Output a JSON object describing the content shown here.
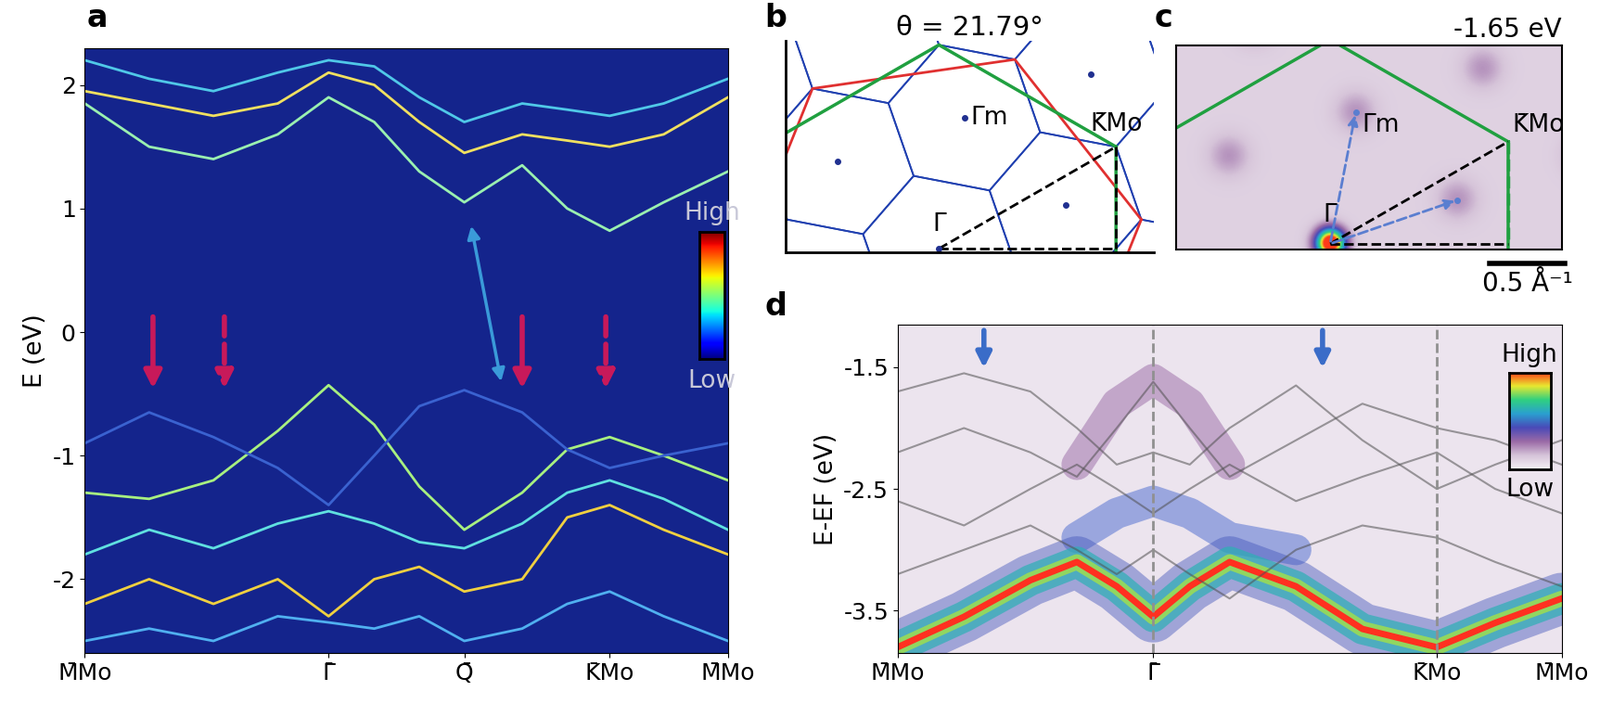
{
  "panel_labels": [
    "a",
    "b",
    "c",
    "d"
  ],
  "chart_data": [
    {
      "type": "line",
      "ylabel": "E (eV)",
      "x": [
        0,
        0.1,
        0.2,
        0.3,
        0.379,
        0.45,
        0.52,
        0.59,
        0.68,
        0.75,
        0.816,
        0.9,
        1.0
      ],
      "series": [
        {
          "color": "#9af0b0",
          "line_style": "solid",
          "values": [
            1.85,
            1.5,
            1.4,
            1.6,
            1.9,
            1.7,
            1.3,
            1.05,
            1.35,
            1.0,
            0.82,
            1.05,
            1.3
          ]
        },
        {
          "color": "#f0e060",
          "line_style": "solid",
          "values": [
            1.95,
            1.85,
            1.75,
            1.85,
            2.1,
            2.0,
            1.7,
            1.45,
            1.6,
            1.55,
            1.5,
            1.6,
            1.9
          ]
        },
        {
          "color": "#50c8e8",
          "line_style": "solid",
          "values": [
            2.2,
            2.05,
            1.95,
            2.1,
            2.2,
            2.15,
            1.9,
            1.7,
            1.85,
            1.8,
            1.75,
            1.85,
            2.05
          ]
        },
        {
          "color": "#a8f080",
          "line_style": "solid",
          "values": [
            -1.3,
            -1.35,
            -1.2,
            -0.8,
            -0.43,
            -0.75,
            -1.25,
            -1.6,
            -1.3,
            -0.95,
            -0.85,
            -1.0,
            -1.2
          ]
        },
        {
          "color": "#3a62d0",
          "line_style": "solid",
          "values": [
            -0.9,
            -0.65,
            -0.85,
            -1.1,
            -1.4,
            -1.0,
            -0.6,
            -0.47,
            -0.65,
            -0.95,
            -1.1,
            -1.0,
            -0.9
          ]
        },
        {
          "color": "#60e0e0",
          "line_style": "solid",
          "values": [
            -1.8,
            -1.6,
            -1.75,
            -1.55,
            -1.45,
            -1.55,
            -1.7,
            -1.75,
            -1.55,
            -1.3,
            -1.2,
            -1.35,
            -1.6
          ]
        },
        {
          "color": "#f0d040",
          "line_style": "solid",
          "values": [
            -2.2,
            -2.0,
            -2.2,
            -2.0,
            -2.3,
            -2.0,
            -1.9,
            -2.1,
            -2.0,
            -1.5,
            -1.4,
            -1.6,
            -1.8
          ]
        },
        {
          "color": "#50b0f0",
          "line_style": "solid",
          "values": [
            -2.5,
            -2.4,
            -2.5,
            -2.3,
            -2.35,
            -2.4,
            -2.3,
            -2.5,
            -2.4,
            -2.2,
            -2.1,
            -2.3,
            -2.5
          ]
        }
      ],
      "xlim": [
        0,
        1.0
      ],
      "ylim": [
        -2.6,
        2.3
      ],
      "yticks": [
        -2,
        -1,
        0,
        1,
        2
      ],
      "xticks": [
        {
          "value": 0,
          "label": "M̄Mo"
        },
        {
          "value": 0.379,
          "label": "Γ̄"
        },
        {
          "value": 0.59,
          "label": "Q̄"
        },
        {
          "value": 0.816,
          "label": "K̄Mo"
        },
        {
          "value": 1.0,
          "label": "M̄Mo"
        }
      ],
      "colorbar_labels": [
        "High",
        "Low"
      ]
    },
    {
      "type": "line",
      "ylabel": "E-EF (eV)",
      "x": [
        0,
        0.1,
        0.2,
        0.27,
        0.33,
        0.385,
        0.44,
        0.5,
        0.6,
        0.7,
        0.812,
        0.9,
        1.0
      ],
      "series": [
        {
          "color": "#9a6aa6",
          "line_style": "thick",
          "values": [
            null,
            null,
            null,
            -2.3,
            -1.8,
            -1.6,
            -1.8,
            -2.3,
            null,
            null,
            null,
            null,
            null
          ]
        },
        {
          "color": "#4a6ad0",
          "line_style": "thick",
          "values": [
            null,
            null,
            null,
            -2.9,
            -2.7,
            -2.6,
            -2.7,
            -2.9,
            -3.0,
            null,
            null,
            null,
            null
          ]
        },
        {
          "color": "#ff3020",
          "line_style": "broad",
          "values": [
            -3.8,
            -3.55,
            -3.25,
            -3.1,
            -3.3,
            -3.55,
            -3.3,
            -3.1,
            -3.3,
            -3.65,
            -3.8,
            -3.6,
            -3.4
          ]
        },
        {
          "color": "#505050",
          "line_style": "solid",
          "values": [
            -2.2,
            -2.0,
            -2.2,
            -2.4,
            -2.0,
            -1.62,
            -2.0,
            -2.4,
            -2.1,
            -1.8,
            -2.0,
            -2.1,
            -2.3
          ]
        },
        {
          "color": "#505050",
          "line_style": "solid",
          "values": [
            -1.7,
            -1.55,
            -1.7,
            -2.0,
            -2.3,
            -2.2,
            -2.3,
            -2.0,
            -1.65,
            -2.1,
            -2.5,
            -2.3,
            -2.1
          ]
        },
        {
          "color": "#505050",
          "line_style": "solid",
          "values": [
            -2.6,
            -2.8,
            -2.5,
            -2.3,
            -2.5,
            -2.7,
            -2.5,
            -2.3,
            -2.6,
            -2.4,
            -2.2,
            -2.5,
            -2.7
          ]
        },
        {
          "color": "#505050",
          "line_style": "solid",
          "values": [
            -3.2,
            -3.0,
            -2.8,
            -3.0,
            -3.2,
            -3.0,
            -3.2,
            -3.4,
            -3.0,
            -2.8,
            -2.9,
            -3.1,
            -3.3
          ]
        }
      ],
      "xlim": [
        0,
        1.0
      ],
      "ylim": [
        -3.85,
        -1.15
      ],
      "yticks": [
        -1.5,
        -2.5,
        -3.5
      ],
      "xticks": [
        {
          "value": 0,
          "label": "M̄Mo"
        },
        {
          "value": 0.385,
          "label": "Γ̄"
        },
        {
          "value": 0.812,
          "label": "K̄Mo"
        },
        {
          "value": 1.0,
          "label": "M̄Mo"
        }
      ],
      "colorbar_labels": [
        "High",
        "Low"
      ]
    }
  ],
  "diagram_b": {
    "title": "θ = 21.79°",
    "theta": 21.79,
    "labels": {
      "gamma": "Γ̄",
      "gamma_m": "Γ̄m",
      "k": "K̄Mo"
    }
  },
  "map_c": {
    "energy_label": "-1.65 eV",
    "scale_bar": "0.5 Å⁻¹",
    "labels": {
      "gamma": "Γ̄",
      "gamma_m": "Γ̄m",
      "k": "K̄Mo"
    }
  }
}
